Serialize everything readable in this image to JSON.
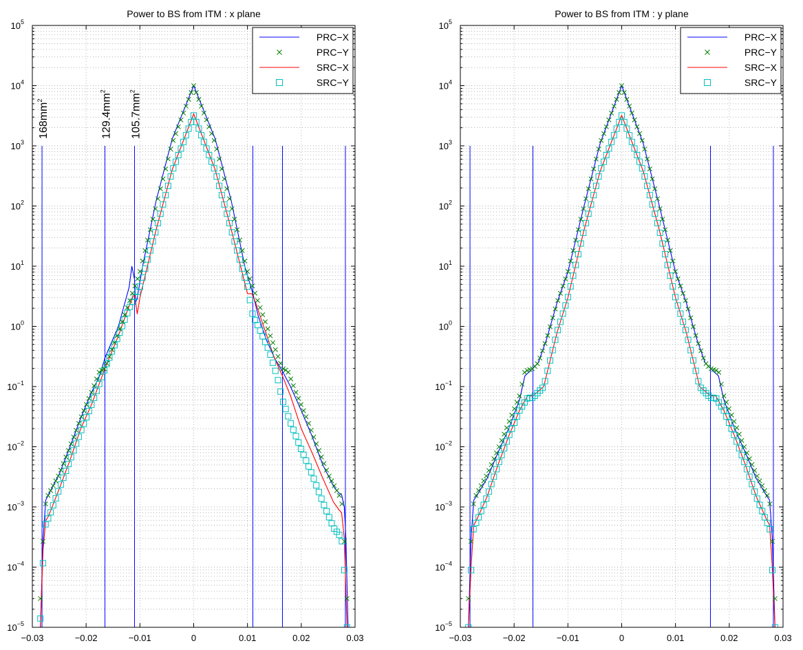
{
  "chart_data": [
    {
      "type": "line",
      "title": "Power to BS from ITM : x plane",
      "xlabel": "",
      "ylabel": "",
      "xlim": [
        -0.03,
        0.03
      ],
      "ylim": [
        1e-05,
        100000.0
      ],
      "yscale": "log",
      "grid": true,
      "legend_position": "top-right",
      "x_ticks": [
        "−0.03",
        "−0.02",
        "−0.01",
        "0",
        "0.01",
        "0.02",
        "0.03"
      ],
      "x_tick_values": [
        -0.03,
        -0.02,
        -0.01,
        0,
        0.01,
        0.02,
        0.03
      ],
      "y_tick_exponents": [
        -5,
        -4,
        -3,
        -2,
        -1,
        0,
        1,
        2,
        3,
        4,
        5
      ],
      "vertical_lines": [
        -0.0282,
        -0.0165,
        -0.011,
        0.011,
        0.0165,
        0.0282
      ],
      "vertical_line_top": 1000,
      "annotations": [
        {
          "text": "168mm",
          "sup": "2",
          "x": -0.0282
        },
        {
          "text": "129.4mm",
          "sup": "2",
          "x": -0.0165
        },
        {
          "text": "105.7mm",
          "sup": "2",
          "x": -0.011
        }
      ],
      "series": [
        {
          "name": "PRC−X",
          "color": "#0000ff",
          "marker": "line",
          "x": [
            -0.0285,
            -0.028,
            -0.0275,
            -0.027,
            -0.025,
            -0.023,
            -0.021,
            -0.019,
            -0.0175,
            -0.0165,
            -0.014,
            -0.012,
            -0.0115,
            -0.011,
            -0.0108,
            -0.0105,
            -0.0095,
            -0.007,
            -0.004,
            0,
            0.004,
            0.007,
            0.0095,
            0.011,
            0.012,
            0.0135,
            0.015,
            0.0165,
            0.018,
            0.02,
            0.022,
            0.024,
            0.026,
            0.027,
            0.0275,
            0.028,
            0.0283,
            0.0287
          ],
          "y": [
            1e-05,
            0.0003,
            0.0013,
            0.0016,
            0.0035,
            0.01,
            0.03,
            0.08,
            0.15,
            0.3,
            1.0,
            4.5,
            10,
            6,
            2.5,
            3.0,
            10,
            120,
            1300,
            10000,
            1300,
            120,
            10,
            3.5,
            1.5,
            0.6,
            0.3,
            0.18,
            0.1,
            0.04,
            0.015,
            0.005,
            0.0022,
            0.0017,
            0.0016,
            0.001,
            0.0003,
            1e-05
          ]
        },
        {
          "name": "PRC−Y",
          "color": "#007f00",
          "marker": "x",
          "x": [
            -0.0285,
            -0.028,
            -0.0275,
            -0.027,
            -0.025,
            -0.023,
            -0.021,
            -0.019,
            -0.0175,
            -0.0165,
            -0.014,
            -0.012,
            -0.011,
            -0.01,
            -0.007,
            -0.004,
            0,
            0.004,
            0.007,
            0.01,
            0.011,
            0.012,
            0.014,
            0.0165,
            0.0175,
            0.019,
            0.021,
            0.023,
            0.025,
            0.027,
            0.0275,
            0.028,
            0.0285
          ],
          "y": [
            3e-05,
            0.0003,
            0.0013,
            0.0016,
            0.0035,
            0.01,
            0.03,
            0.08,
            0.18,
            0.2,
            0.8,
            2.5,
            4.5,
            8,
            100,
            1100,
            10000,
            1100,
            100,
            8,
            4.5,
            2.5,
            0.8,
            0.2,
            0.18,
            0.08,
            0.03,
            0.01,
            0.0035,
            0.0016,
            0.0013,
            0.0003,
            3e-05
          ]
        },
        {
          "name": "SRC−X",
          "color": "#ff0000",
          "marker": "line",
          "x": [
            -0.0285,
            -0.028,
            -0.0275,
            -0.027,
            -0.025,
            -0.023,
            -0.021,
            -0.019,
            -0.0165,
            -0.014,
            -0.012,
            -0.011,
            -0.0105,
            -0.01,
            -0.007,
            -0.004,
            0,
            0.004,
            0.007,
            0.01,
            0.0108,
            0.0115,
            0.013,
            0.015,
            0.0165,
            0.018,
            0.02,
            0.022,
            0.024,
            0.026,
            0.027,
            0.0275,
            0.028,
            0.0285
          ],
          "y": [
            1e-05,
            0.0002,
            0.0006,
            0.0007,
            0.002,
            0.006,
            0.02,
            0.05,
            0.2,
            0.7,
            2.2,
            3.5,
            1.6,
            3,
            40,
            400,
            3400,
            400,
            40,
            3.5,
            3.5,
            2.5,
            1.0,
            0.3,
            0.15,
            0.07,
            0.02,
            0.008,
            0.003,
            0.0012,
            0.0009,
            0.0008,
            0.0003,
            1e-05
          ]
        },
        {
          "name": "SRC−Y",
          "color": "#00bfbf",
          "marker": "square",
          "x": [
            -0.0285,
            -0.028,
            -0.0275,
            -0.027,
            -0.025,
            -0.023,
            -0.021,
            -0.019,
            -0.0165,
            -0.014,
            -0.012,
            -0.011,
            -0.01,
            -0.007,
            -0.004,
            0,
            0.004,
            0.007,
            0.01,
            0.011,
            0.012,
            0.014,
            0.0155,
            0.0165,
            0.018,
            0.02,
            0.022,
            0.024,
            0.026,
            0.027,
            0.0275,
            0.028,
            0.0285
          ],
          "y": [
            1.4e-05,
            0.00013,
            0.0006,
            0.00065,
            0.002,
            0.006,
            0.018,
            0.05,
            0.2,
            0.7,
            2.0,
            3.0,
            4.5,
            40,
            380,
            3200,
            380,
            40,
            4.5,
            1.5,
            1.0,
            0.4,
            0.15,
            0.06,
            0.025,
            0.009,
            0.0035,
            0.0012,
            0.00045,
            0.00035,
            0.0003,
            0.0001,
            1e-05
          ]
        }
      ]
    },
    {
      "type": "line",
      "title": "Power to BS from ITM : y plane",
      "xlabel": "",
      "ylabel": "",
      "xlim": [
        -0.03,
        0.03
      ],
      "ylim": [
        1e-05,
        100000.0
      ],
      "yscale": "log",
      "grid": true,
      "legend_position": "top-right",
      "x_ticks": [
        "−0.03",
        "−0.02",
        "−0.01",
        "0",
        "0.01",
        "0.02",
        "0.03"
      ],
      "x_tick_values": [
        -0.03,
        -0.02,
        -0.01,
        0,
        0.01,
        0.02,
        0.03
      ],
      "y_tick_exponents": [
        -5,
        -4,
        -3,
        -2,
        -1,
        0,
        1,
        2,
        3,
        4,
        5
      ],
      "vertical_lines": [
        -0.0282,
        -0.0165,
        0.0165,
        0.0282
      ],
      "vertical_line_top": 1000,
      "annotations": [],
      "series": [
        {
          "name": "PRC−X",
          "color": "#0000ff",
          "marker": "line",
          "x": [
            -0.0285,
            -0.028,
            -0.0275,
            -0.027,
            -0.025,
            -0.023,
            -0.021,
            -0.019,
            -0.018,
            -0.0165,
            -0.0155,
            -0.014,
            -0.012,
            -0.01,
            -0.007,
            -0.004,
            0,
            0.004,
            0.007,
            0.01,
            0.012,
            0.014,
            0.0155,
            0.0165,
            0.018,
            0.019,
            0.021,
            0.023,
            0.025,
            0.027,
            0.0275,
            0.028,
            0.0285
          ],
          "y": [
            1e-05,
            0.0003,
            0.0013,
            0.0015,
            0.003,
            0.008,
            0.02,
            0.06,
            0.15,
            0.2,
            0.25,
            0.6,
            2.5,
            8,
            100,
            1100,
            10000,
            1100,
            100,
            8,
            2.5,
            0.6,
            0.25,
            0.2,
            0.15,
            0.06,
            0.02,
            0.008,
            0.003,
            0.0015,
            0.0013,
            0.0003,
            1e-05
          ]
        },
        {
          "name": "PRC−Y",
          "color": "#007f00",
          "marker": "x",
          "x": [
            -0.0285,
            -0.028,
            -0.0275,
            -0.027,
            -0.025,
            -0.023,
            -0.021,
            -0.019,
            -0.018,
            -0.0165,
            -0.0155,
            -0.014,
            -0.012,
            -0.01,
            -0.007,
            -0.004,
            0,
            0.004,
            0.007,
            0.01,
            0.012,
            0.014,
            0.0155,
            0.0165,
            0.018,
            0.019,
            0.021,
            0.023,
            0.025,
            0.027,
            0.0275,
            0.028,
            0.0285
          ],
          "y": [
            3e-05,
            0.0003,
            0.0013,
            0.0016,
            0.0035,
            0.009,
            0.025,
            0.07,
            0.18,
            0.2,
            0.25,
            0.6,
            2.5,
            8,
            100,
            1100,
            10000,
            1100,
            100,
            8,
            2.5,
            0.6,
            0.25,
            0.2,
            0.18,
            0.07,
            0.025,
            0.009,
            0.0035,
            0.0016,
            0.0013,
            0.0003,
            3e-05
          ]
        },
        {
          "name": "SRC−X",
          "color": "#ff0000",
          "marker": "line",
          "x": [
            -0.0285,
            -0.028,
            -0.0275,
            -0.027,
            -0.025,
            -0.023,
            -0.021,
            -0.019,
            -0.0175,
            -0.0165,
            -0.0145,
            -0.012,
            -0.01,
            -0.007,
            -0.004,
            0,
            0.004,
            0.007,
            0.01,
            0.012,
            0.0145,
            0.0165,
            0.0175,
            0.019,
            0.021,
            0.023,
            0.025,
            0.027,
            0.0275,
            0.028,
            0.0285
          ],
          "y": [
            1e-05,
            0.0001,
            0.0005,
            0.0006,
            0.0015,
            0.005,
            0.015,
            0.04,
            0.07,
            0.07,
            0.1,
            0.8,
            3,
            40,
            380,
            3200,
            380,
            40,
            3,
            0.8,
            0.1,
            0.07,
            0.07,
            0.04,
            0.015,
            0.005,
            0.0015,
            0.0006,
            0.0005,
            0.0001,
            1e-05
          ]
        },
        {
          "name": "SRC−Y",
          "color": "#00bfbf",
          "marker": "square",
          "x": [
            -0.0285,
            -0.028,
            -0.0275,
            -0.027,
            -0.025,
            -0.023,
            -0.021,
            -0.019,
            -0.0175,
            -0.0165,
            -0.0145,
            -0.012,
            -0.01,
            -0.007,
            -0.004,
            0,
            0.004,
            0.007,
            0.01,
            0.012,
            0.0145,
            0.0165,
            0.0175,
            0.019,
            0.021,
            0.023,
            0.025,
            0.027,
            0.0275,
            0.028,
            0.0285
          ],
          "y": [
            1e-05,
            0.0001,
            0.0005,
            0.00055,
            0.0015,
            0.005,
            0.015,
            0.04,
            0.065,
            0.065,
            0.1,
            0.8,
            3,
            40,
            380,
            3200,
            380,
            40,
            3,
            0.8,
            0.1,
            0.065,
            0.065,
            0.04,
            0.015,
            0.005,
            0.0015,
            0.00055,
            0.0005,
            0.0001,
            1e-05
          ]
        }
      ]
    }
  ]
}
